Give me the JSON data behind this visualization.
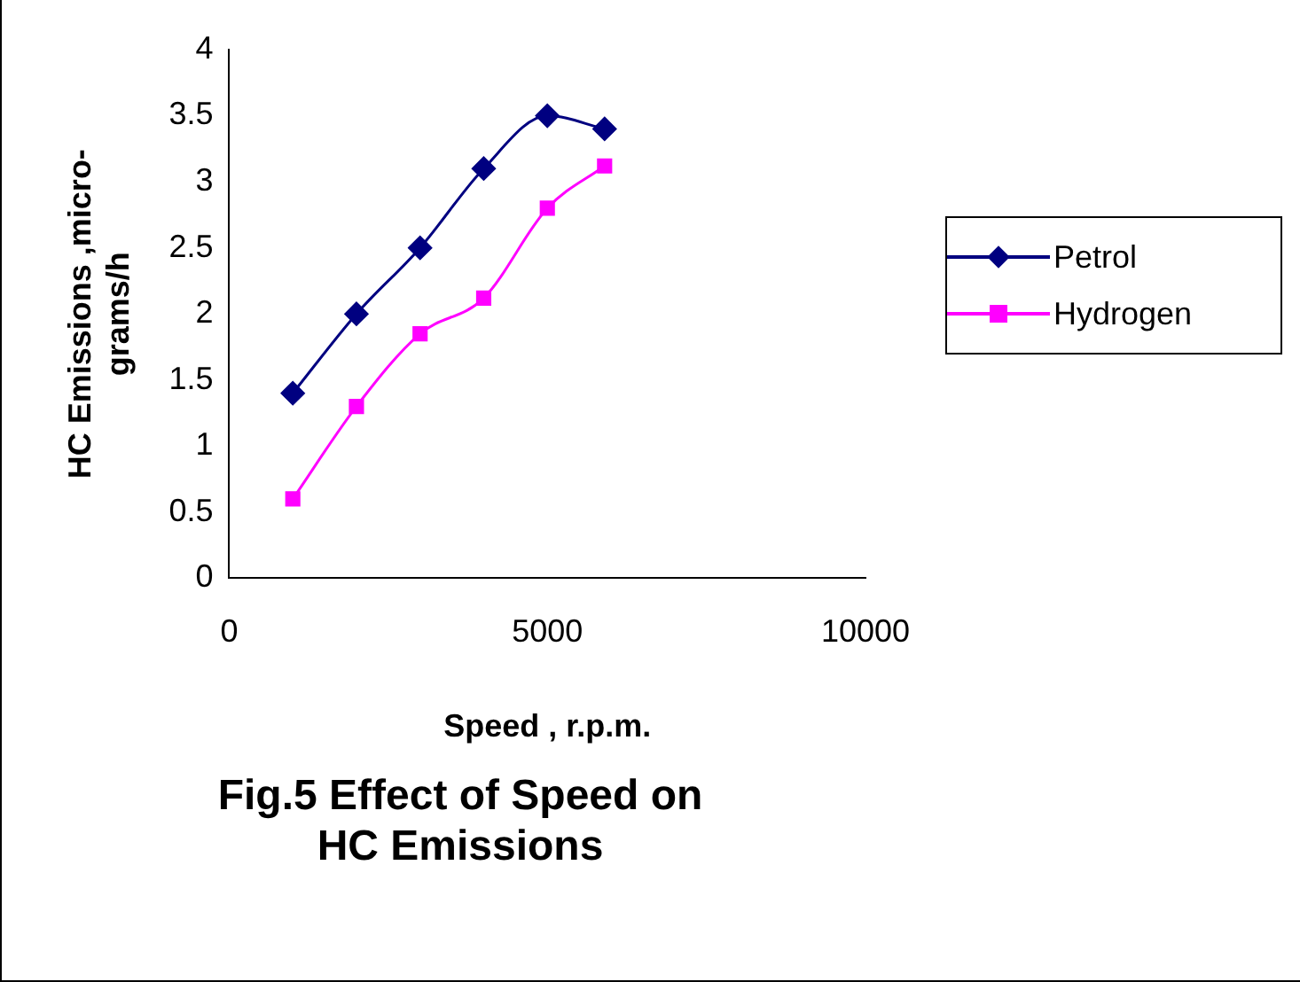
{
  "chart_data": {
    "type": "line",
    "title": "Fig.5 Effect of Speed on HC Emissions",
    "xlabel": "Speed , r.p.m.",
    "ylabel": "HC Emissions ,micro-grams/h",
    "xlim": [
      0,
      10000
    ],
    "xticks": [
      0,
      5000,
      10000
    ],
    "ylim": [
      0,
      4
    ],
    "yticks": [
      0,
      0.5,
      1,
      1.5,
      2,
      2.5,
      3,
      3.5,
      4
    ],
    "grid": false,
    "legend": "right",
    "series": [
      {
        "name": "Petrol",
        "color": "#000080",
        "marker": "diamond",
        "x": [
          1000,
          2000,
          3000,
          4000,
          5000,
          5900
        ],
        "values": [
          1.4,
          2.0,
          2.5,
          3.1,
          3.5,
          3.4
        ]
      },
      {
        "name": "Hydrogen",
        "color": "#ff00ff",
        "marker": "square",
        "x": [
          1000,
          2000,
          3000,
          4000,
          5000,
          5900
        ],
        "values": [
          0.6,
          1.3,
          1.85,
          2.12,
          2.8,
          3.12
        ]
      }
    ]
  }
}
